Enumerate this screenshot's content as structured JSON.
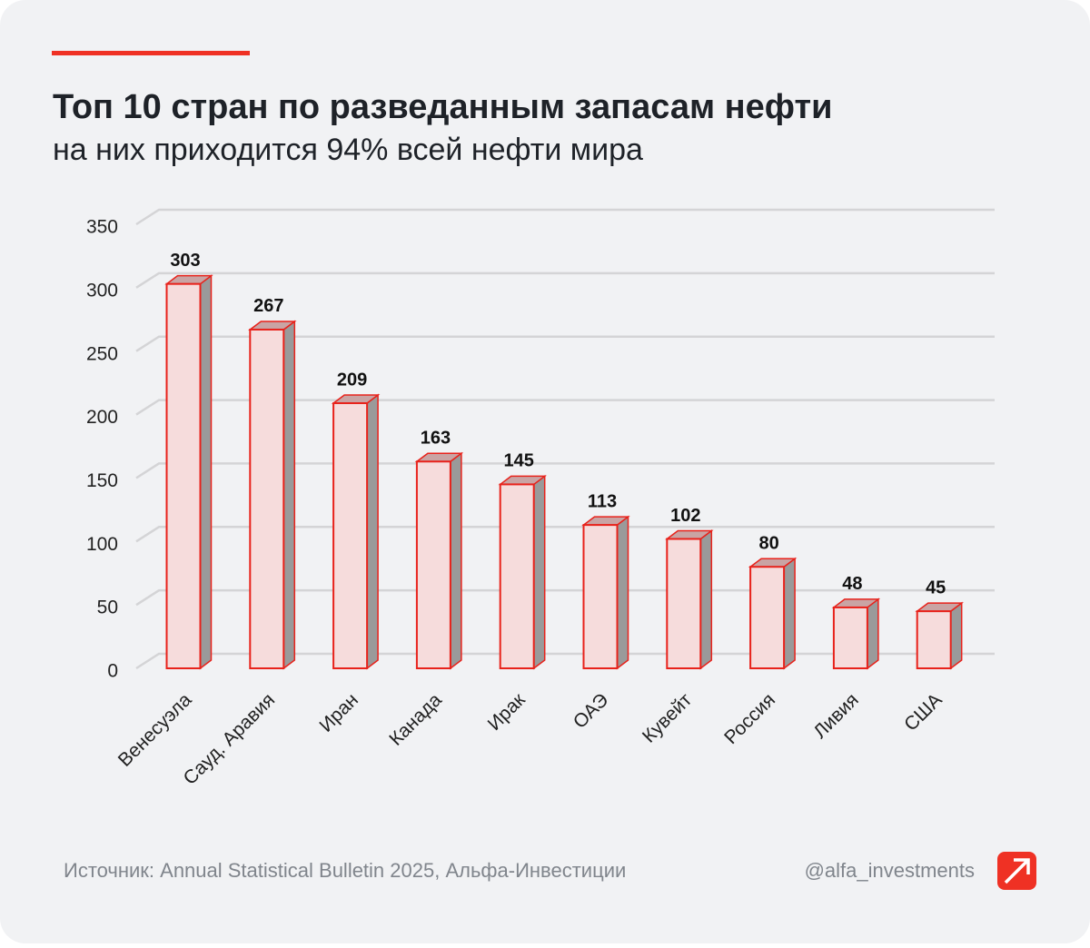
{
  "chart_data": {
    "type": "bar3d",
    "title": "Топ 10 стран по разведанным запасам нефти",
    "subtitle": "на них приходится 94% всей нефти мира",
    "categories": [
      "Венесуэла",
      "Сауд. Аравия",
      "Иран",
      "Канада",
      "Ирак",
      "ОАЭ",
      "Кувейт",
      "Россия",
      "Ливия",
      "США"
    ],
    "values": [
      303,
      267,
      209,
      163,
      145,
      113,
      102,
      80,
      48,
      45
    ],
    "color": "#f6dcdc",
    "edge_color": "#e8221b",
    "side_color": "#9a9a9a",
    "ylim": [
      0,
      350
    ],
    "yticks": [
      0,
      50,
      100,
      150,
      200,
      250,
      300,
      350
    ],
    "grid": true
  },
  "footer": {
    "source": "Источник: Annual Statistical Bulletin 2025, Альфа-Инвестиции",
    "handle": "@alfa_investments"
  }
}
